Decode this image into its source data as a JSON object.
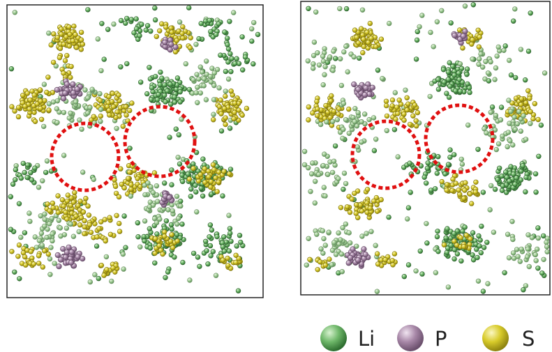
{
  "legend": [
    "Li",
    "P",
    "S"
  ]
}
